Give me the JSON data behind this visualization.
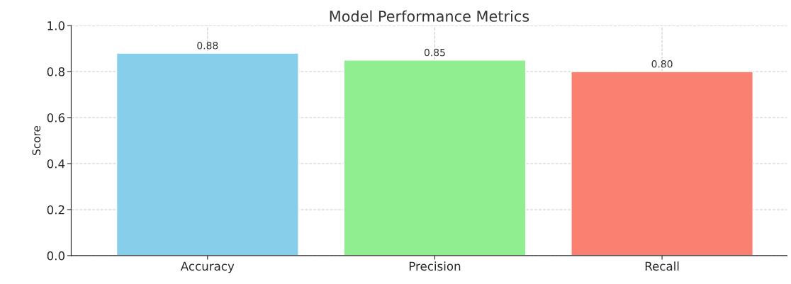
{
  "chart_data": {
    "type": "bar",
    "title": "Model Performance Metrics",
    "ylabel": "Score",
    "categories": [
      "Accuracy",
      "Precision",
      "Recall"
    ],
    "values": [
      0.88,
      0.85,
      0.8
    ],
    "colors": [
      "#87ceeb",
      "#90ee90",
      "#fa8072"
    ],
    "value_labels": [
      "0.88",
      "0.85",
      "0.80"
    ],
    "ylim": [
      0,
      1
    ],
    "yticks": [
      {
        "value": 0,
        "label": "0.0"
      },
      {
        "value": 0.2,
        "label": "0.2"
      },
      {
        "value": 0.4,
        "label": "0.4"
      },
      {
        "value": 0.6,
        "label": "0.6"
      },
      {
        "value": 0.8,
        "label": "0.8"
      },
      {
        "value": 1,
        "label": "1.0"
      }
    ],
    "grid": true
  }
}
